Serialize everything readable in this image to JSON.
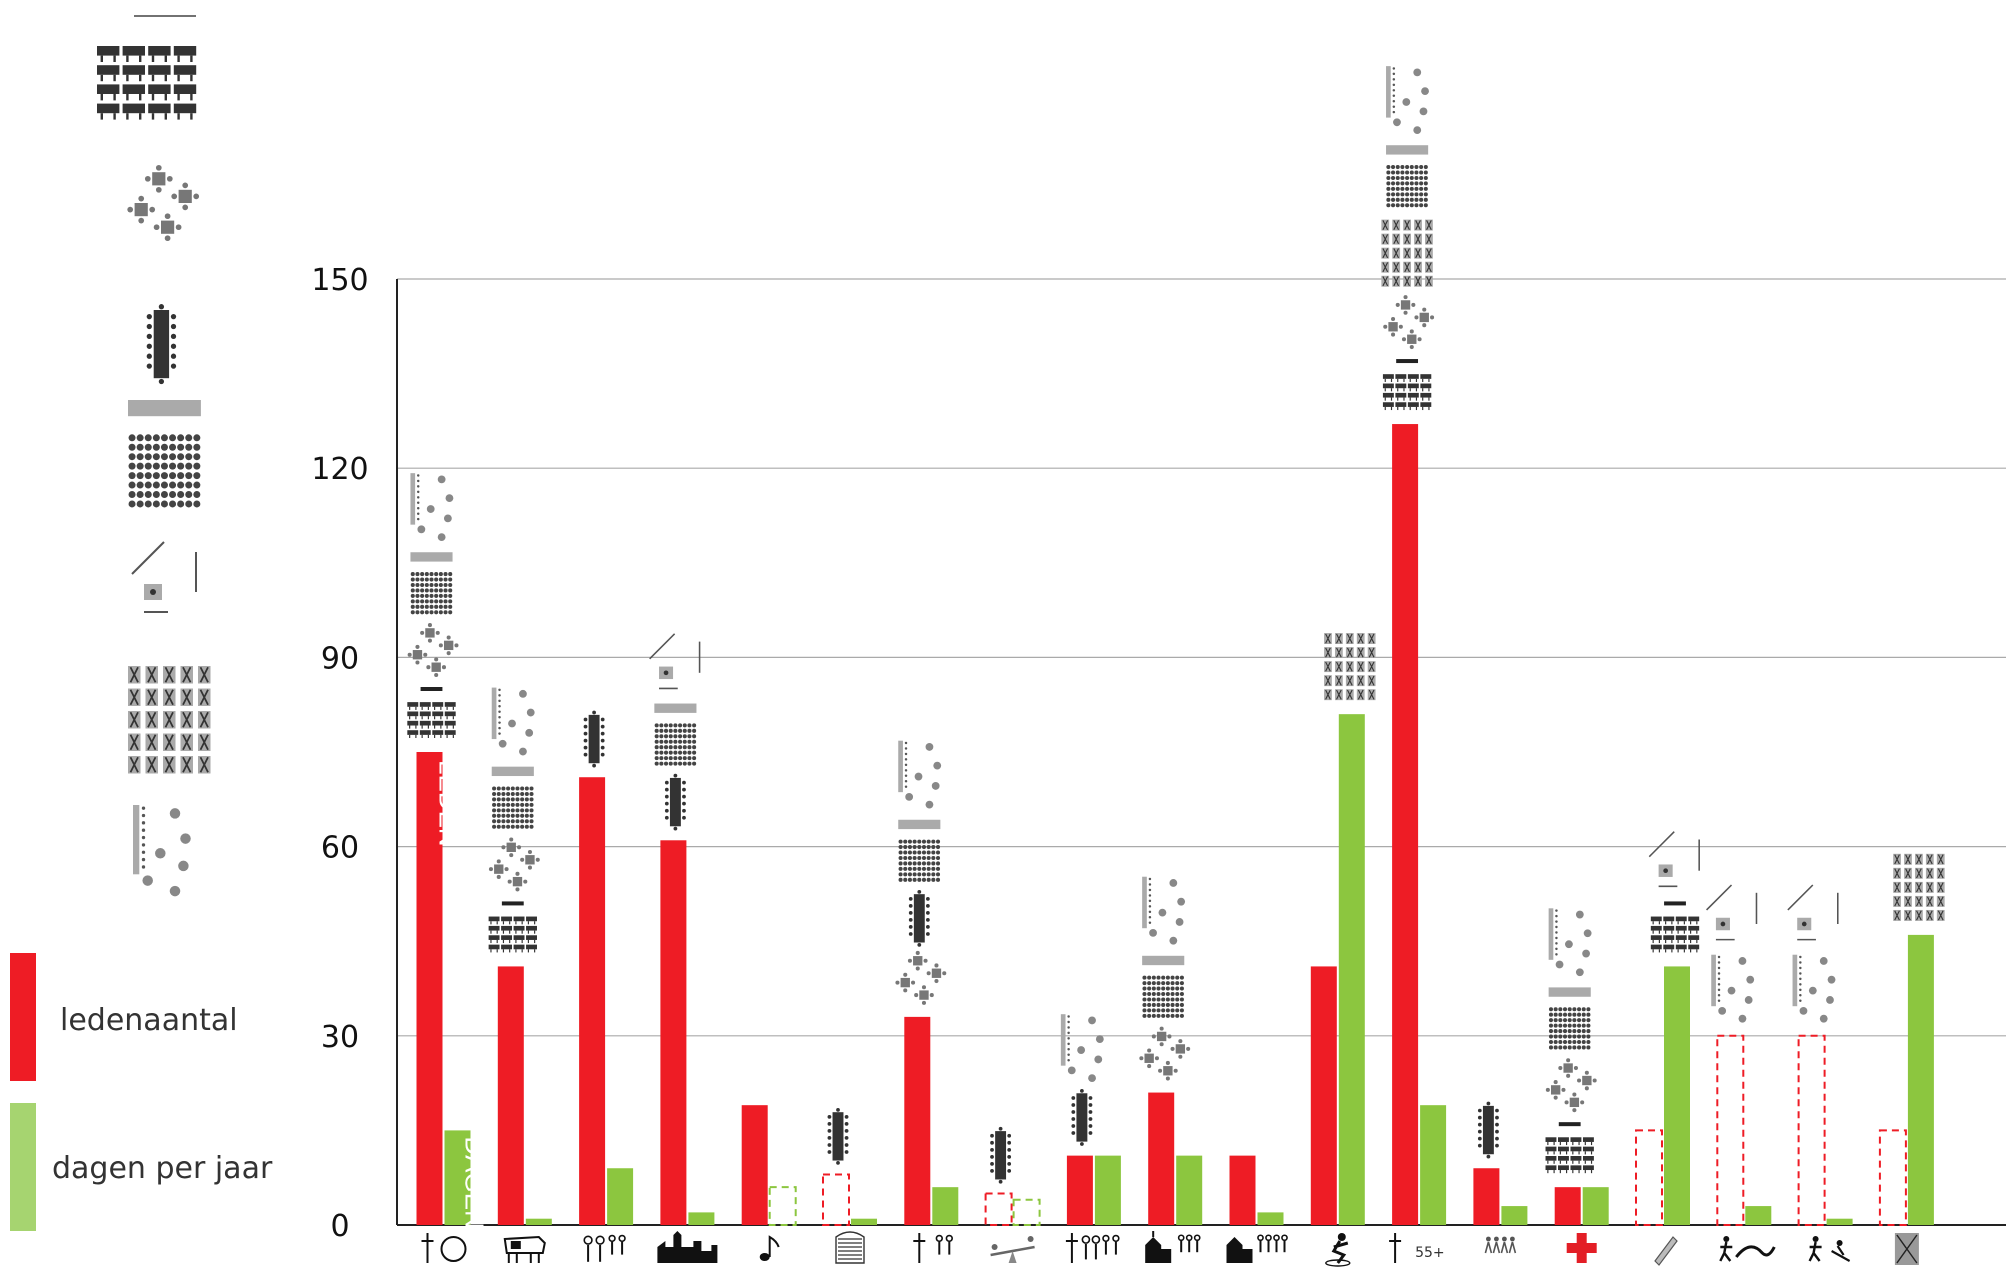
{
  "colors": {
    "members": "#ee1c25",
    "days": "#8cc63f",
    "days_legend": "#a6d470",
    "grid": "#aaaaaa",
    "icon_dark": "#333333",
    "icon_mid": "#777777",
    "icon_light": "#aaaaaa"
  },
  "legend": {
    "members_label": "ledenaantal",
    "days_label": "dagen per jaar"
  },
  "seating_legend_icons": [
    "theatre-rows-icon",
    "cabaret-tables-icon",
    "boardroom-table-icon",
    "standing-crowd-icon",
    "stage-and-table-icon",
    "seated-audience-icon",
    "dance-floor-icon"
  ],
  "chart_data": {
    "type": "bar",
    "ylim": [
      0,
      150
    ],
    "yticks": [
      0,
      30,
      60,
      90,
      120,
      150
    ],
    "grid": true,
    "categories": [
      "cross-and-ball-icon",
      "cow-icon",
      "family-icon",
      "village-skyline-icon",
      "music-note-icon",
      "beehive-icon",
      "cross-and-couple-icon",
      "seesaw-icon",
      "cross-and-family-icon",
      "church-and-family-icon",
      "church-and-group-icon",
      "gymnast-icon",
      "cross-55plus-icon",
      "dancers-icon",
      "red-cross-icon",
      "pencil-icon",
      "walker-and-hills-icon",
      "walker-and-skier-icon",
      "framed-figure-icon"
    ],
    "category_texts": [
      "",
      "",
      "",
      "",
      "",
      "",
      "",
      "",
      "",
      "",
      "",
      "",
      "55+",
      "",
      "",
      "",
      "",
      "",
      ""
    ],
    "series": [
      {
        "name": "ledenaantal",
        "values": [
          75,
          41,
          71,
          61,
          19,
          8,
          33,
          5,
          11,
          21,
          11,
          41,
          127,
          9,
          6,
          15,
          30,
          30,
          15
        ],
        "estimated": [
          false,
          false,
          false,
          false,
          false,
          true,
          false,
          true,
          false,
          false,
          false,
          false,
          false,
          false,
          false,
          true,
          true,
          true,
          true
        ]
      },
      {
        "name": "dagen per jaar",
        "values": [
          15,
          1,
          9,
          2,
          6,
          1,
          6,
          4,
          11,
          11,
          2,
          81,
          19,
          3,
          6,
          41,
          3,
          1,
          46
        ],
        "estimated": [
          false,
          false,
          false,
          false,
          true,
          false,
          false,
          true,
          false,
          false,
          false,
          false,
          false,
          false,
          false,
          false,
          false,
          false,
          false
        ]
      }
    ],
    "bar_inner_labels": {
      "members": "LEDEN",
      "days": "DAGEN"
    },
    "seating_above_bars": [
      [
        "theatre-rows-icon",
        "stage-icon",
        "cabaret-tables-icon",
        "standing-crowd-icon",
        "dance-floor-icon"
      ],
      [
        "theatre-rows-icon",
        "stage-icon",
        "cabaret-tables-icon",
        "standing-crowd-icon",
        "dance-floor-icon"
      ],
      [
        "boardroom-table-icon"
      ],
      [
        "boardroom-table-icon",
        "standing-crowd-icon",
        "stage-and-table-icon"
      ],
      [],
      [
        "boardroom-table-icon"
      ],
      [
        "cabaret-tables-icon",
        "boardroom-table-icon",
        "standing-crowd-icon",
        "dance-floor-icon"
      ],
      [
        "boardroom-table-icon"
      ],
      [
        "boardroom-table-icon",
        "dance-floor-icon"
      ],
      [
        "cabaret-tables-icon",
        "standing-crowd-icon",
        "dance-floor-icon"
      ],
      [],
      [
        "seated-audience-icon"
      ],
      [
        "theatre-rows-icon",
        "stage-icon",
        "cabaret-tables-icon",
        "seated-audience-icon",
        "standing-crowd-icon",
        "dance-floor-icon"
      ],
      [
        "boardroom-table-icon"
      ],
      [
        "theatre-rows-icon",
        "stage-icon",
        "cabaret-tables-icon",
        "standing-crowd-icon",
        "dance-floor-icon"
      ],
      [
        "theatre-rows-icon",
        "stage-icon",
        "stage-and-table-icon"
      ],
      [
        "dance-floor-icon",
        "stage-and-table-icon"
      ],
      [
        "dance-floor-icon",
        "stage-and-table-icon"
      ],
      [
        "seated-audience-icon"
      ]
    ]
  }
}
